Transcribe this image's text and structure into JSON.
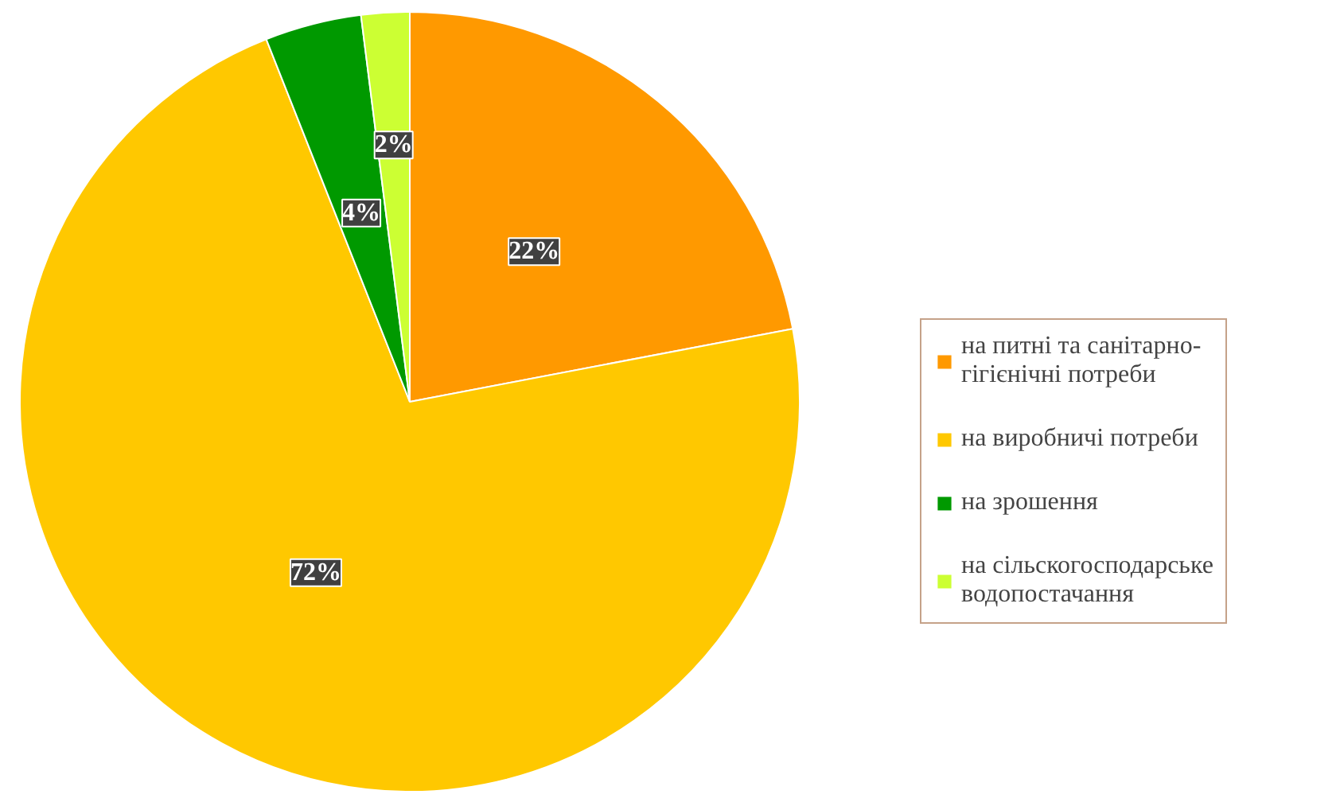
{
  "chart_data": {
    "type": "pie",
    "categories": [
      "на питні та санітарно-гігієнічні потреби",
      "на виробничі потреби",
      "на зрошення",
      "на сільскогосподарське водопостачання"
    ],
    "values": [
      22,
      72,
      4,
      2
    ],
    "colors": [
      "#ff9900",
      "#ffc800",
      "#009900",
      "#ccff33"
    ],
    "value_labels": [
      "22%",
      "72%",
      "4%",
      "2%"
    ],
    "legend": "right"
  }
}
